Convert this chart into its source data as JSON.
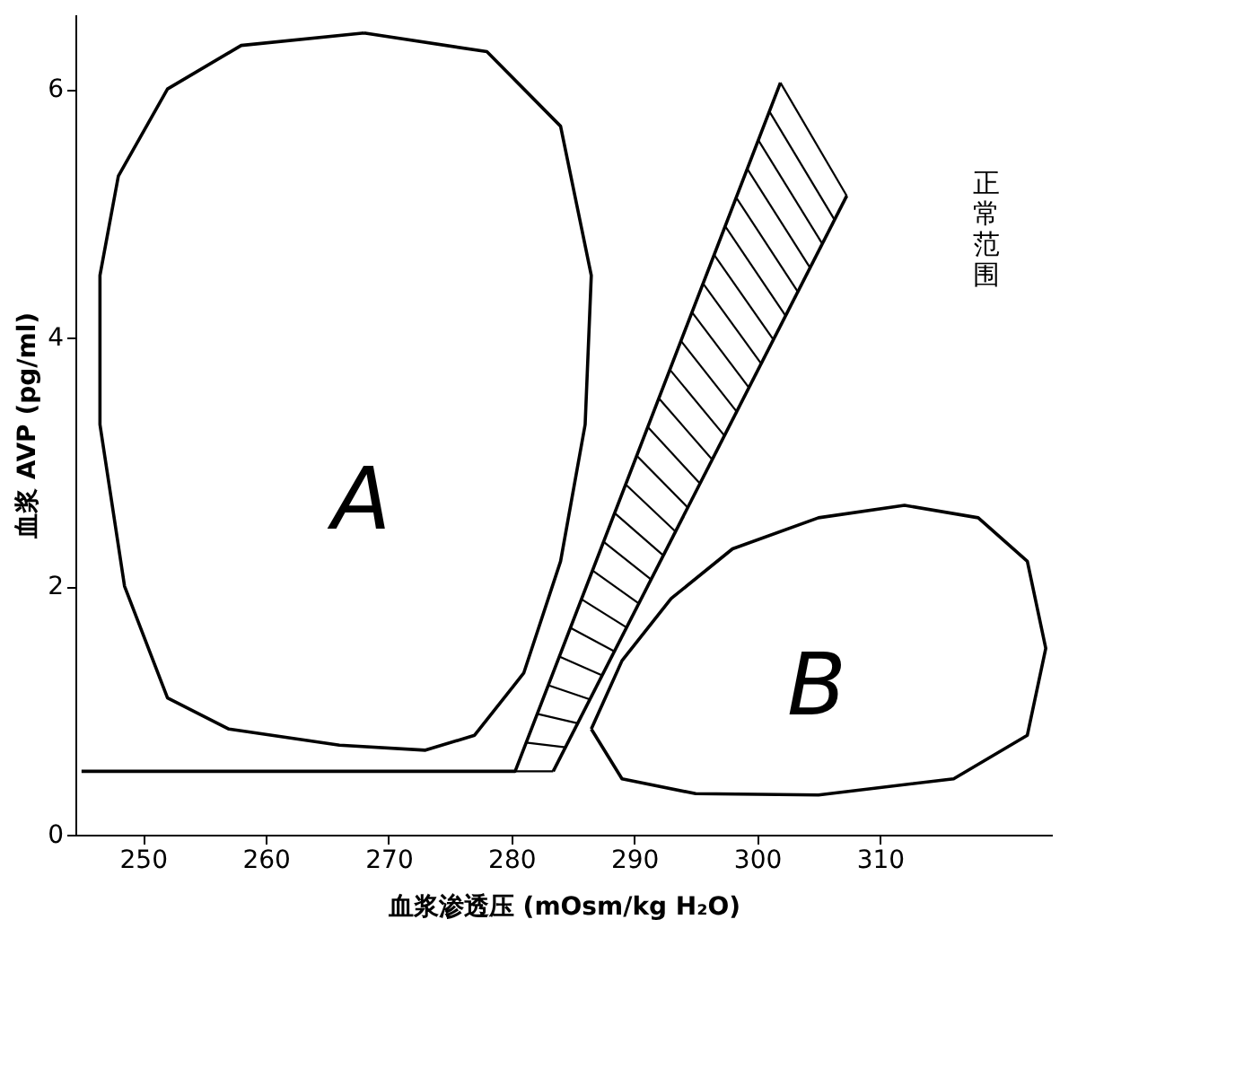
{
  "chart_data": {
    "type": "line",
    "xlabel": "血浆渗透压 (mOsm/kg H₂O)",
    "ylabel": "血浆 AVP (pg/ml)",
    "xlim": [
      244.5,
      324
    ],
    "xticks": [
      250,
      260,
      270,
      280,
      290,
      300,
      310
    ],
    "ylim": [
      0,
      6.6
    ],
    "yticks": [
      0,
      2,
      4,
      6
    ],
    "grid": false,
    "marker": "none",
    "line_style": "solid",
    "series": [
      {
        "color": "#000000",
        "x": [
          245,
          280.3,
          301.9
        ],
        "values": [
          0.51,
          0.51,
          6.05
        ]
      },
      {
        "color": "#000000",
        "x": [
          283.4,
          307.3
        ],
        "values": [
          0.51,
          5.14
        ]
      }
    ],
    "annotations": [
      "A",
      "B",
      "正常范围"
    ]
  }
}
